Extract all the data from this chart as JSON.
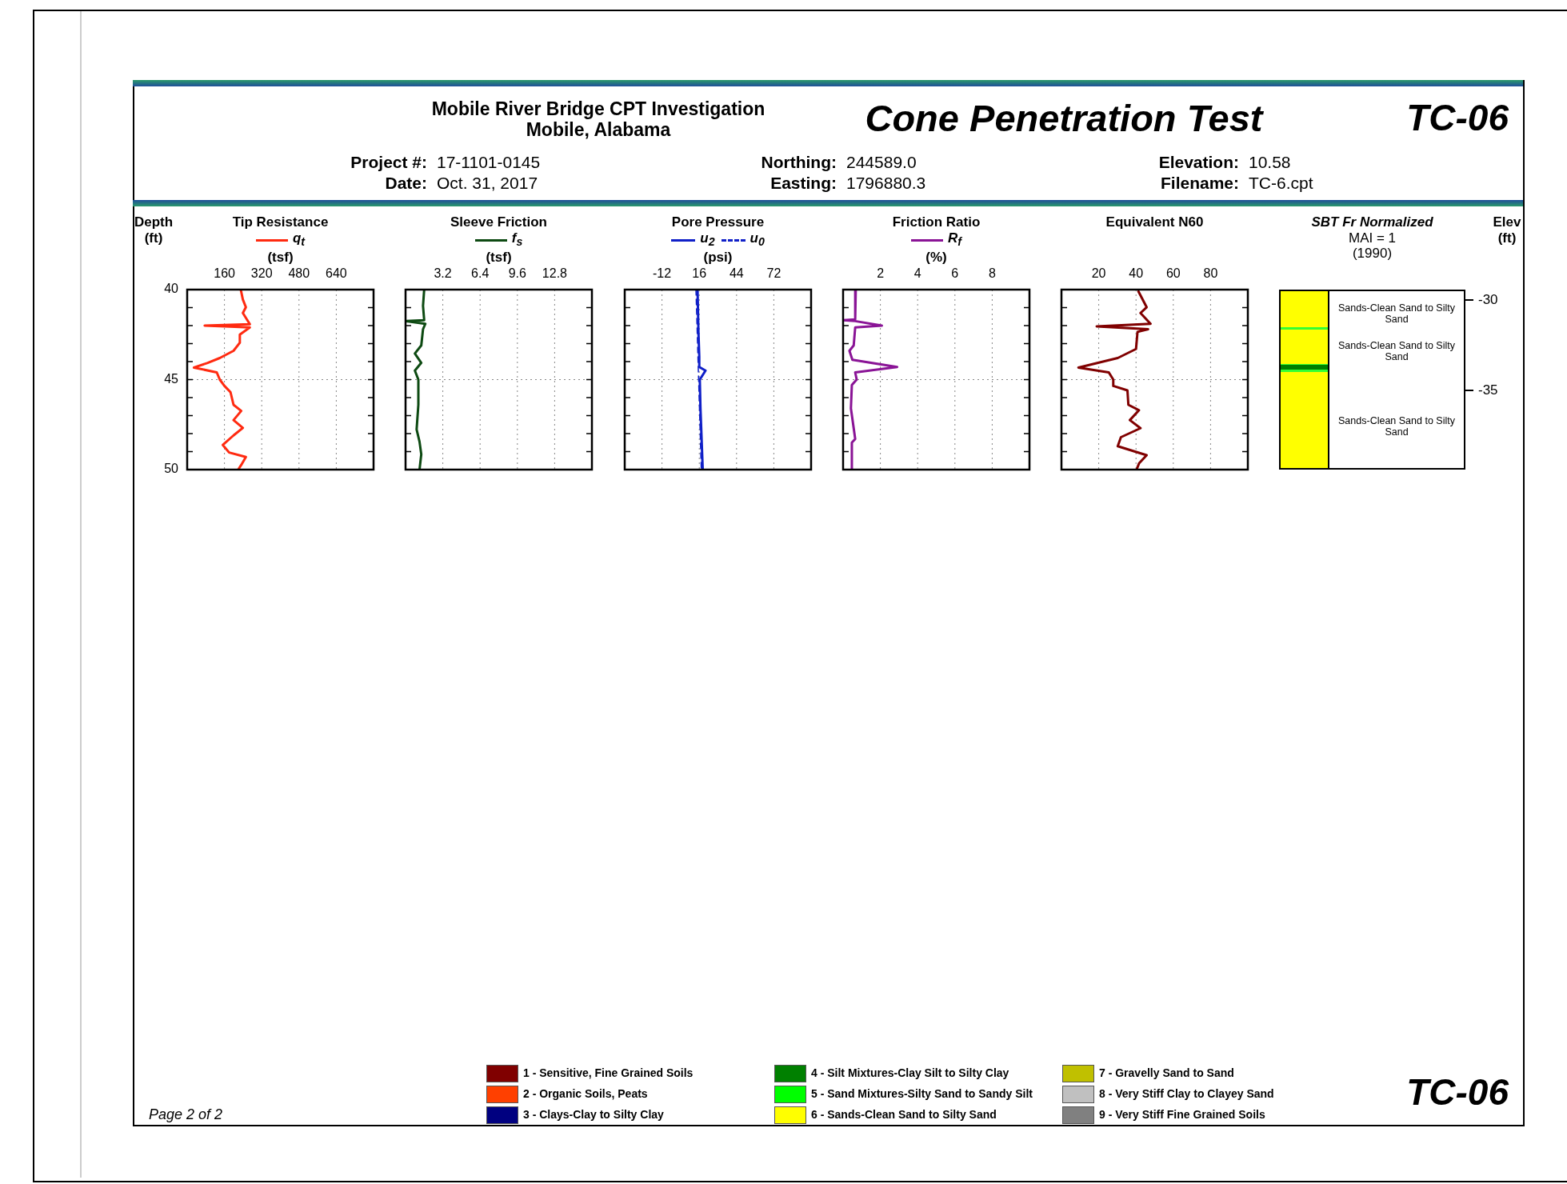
{
  "chart_data": [
    {
      "type": "other",
      "title": "Cone Penetration Test",
      "subtitle": "Mobile River Bridge CPT Investigation\nMobile, Alabama",
      "annotations": [
        "TC-06",
        "Project #: 17-1101-0145",
        "Date: Oct. 31, 2017",
        "Northing: 244589.0",
        "Easting: 1796880.3",
        "Elevation: 10.58",
        "Filename: TC-6.cpt"
      ]
    },
    {
      "type": "line",
      "title": "Tip Resistance",
      "xlabel": "(tsf)",
      "ylabel": "Depth (ft)",
      "legend": "top",
      "grid": true,
      "marker": "none",
      "xlim": [
        0,
        800
      ],
      "xticks": [
        160,
        320,
        480,
        640
      ],
      "ylim": [
        50,
        40
      ],
      "yticks": [
        40,
        {
          "value": 41,
          "label": null
        },
        {
          "value": 42,
          "label": null
        },
        {
          "value": 43,
          "label": null
        },
        {
          "value": 44,
          "label": null
        },
        45,
        {
          "value": 46,
          "label": null
        },
        {
          "value": 47,
          "label": null
        },
        {
          "value": 48,
          "label": null
        },
        {
          "value": 49,
          "label": null
        },
        50
      ],
      "series": [
        {
          "name": "q$_{t}$",
          "color": "#ff2a10",
          "x": [
            230,
            239,
            252,
            239,
            269,
            75,
            269,
            226,
            226,
            199,
            140,
            88,
            29,
            127,
            140,
            160,
            186,
            199,
            232,
            199,
            239,
            199,
            153,
            180,
            252,
            232,
            219
          ],
          "values": [
            40,
            40.55,
            40.98,
            41.3,
            41.92,
            42.0,
            42.1,
            42.5,
            42.95,
            43.4,
            43.8,
            44.07,
            44.33,
            44.6,
            45.0,
            45.35,
            45.7,
            46.4,
            46.74,
            47.25,
            47.68,
            48.1,
            48.63,
            49.05,
            49.3,
            49.74,
            50
          ]
        }
      ]
    },
    {
      "type": "line",
      "title": "Sleeve Friction",
      "xlabel": "(tsf)",
      "legend": "top",
      "grid": true,
      "marker": "none",
      "tick_labels": "x",
      "xlim": [
        0,
        16
      ],
      "xticks": [
        3.2,
        6.4,
        9.6,
        12.8
      ],
      "ylim": [
        50,
        40
      ],
      "yticks": [
        40,
        {
          "value": 41,
          "label": null
        },
        {
          "value": 42,
          "label": null
        },
        {
          "value": 43,
          "label": null
        },
        {
          "value": 44,
          "label": null
        },
        45,
        {
          "value": 46,
          "label": null
        },
        {
          "value": 47,
          "label": null
        },
        {
          "value": 48,
          "label": null
        },
        {
          "value": 49,
          "label": null
        },
        50
      ],
      "series": [
        {
          "name": "f$_{s}$",
          "color": "#0d4a12",
          "x": [
            1.6,
            1.5,
            1.6,
            0.0,
            1.7,
            1.5,
            1.35,
            0.8,
            1.35,
            0.8,
            1.1,
            1.1,
            0.95,
            1.2,
            1.35,
            1.2
          ],
          "values": [
            40,
            40.9,
            41.7,
            41.75,
            41.9,
            42.2,
            43.1,
            43.55,
            44.07,
            44.5,
            45.0,
            46.4,
            47.77,
            48.45,
            49.15,
            50
          ]
        }
      ]
    },
    {
      "type": "line",
      "title": "Pore Pressure",
      "xlabel": "(psi)",
      "legend": "top",
      "grid": true,
      "marker": "none",
      "tick_labels": "x",
      "xlim": [
        -40,
        100
      ],
      "xticks": [
        -12,
        16,
        44,
        72
      ],
      "ylim": [
        50,
        40
      ],
      "yticks": [
        40,
        {
          "value": 41,
          "label": null
        },
        {
          "value": 42,
          "label": null
        },
        {
          "value": 43,
          "label": null
        },
        {
          "value": 44,
          "label": null
        },
        45,
        {
          "value": 46,
          "label": null
        },
        {
          "value": 47,
          "label": null
        },
        {
          "value": 48,
          "label": null
        },
        {
          "value": 49,
          "label": null
        },
        50
      ],
      "series": [
        {
          "name": "u$_{2}$",
          "color": "#1020c8",
          "x": [
            14.7,
            15.4,
            16,
            16,
            20.7,
            16.4,
            16.9,
            18.6
          ],
          "values": [
            40,
            42.4,
            43.7,
            44.3,
            44.5,
            45,
            46.6,
            50
          ]
        },
        {
          "name": "u$_{0}$",
          "color": "#1020c8",
          "line_style": "dashed",
          "x": [
            13.5,
            17.5
          ],
          "values": [
            40,
            50
          ]
        }
      ]
    },
    {
      "type": "line",
      "title": "Friction Ratio",
      "xlabel": "(%)",
      "legend": "top",
      "grid": true,
      "marker": "none",
      "tick_labels": "x",
      "xlim": [
        0,
        10
      ],
      "xticks": [
        2,
        4,
        6,
        8
      ],
      "ylim": [
        50,
        40
      ],
      "yticks": [
        40,
        {
          "value": 41,
          "label": null
        },
        {
          "value": 42,
          "label": null
        },
        {
          "value": 43,
          "label": null
        },
        {
          "value": 44,
          "label": null
        },
        45,
        {
          "value": 46,
          "label": null
        },
        {
          "value": 47,
          "label": null
        },
        {
          "value": 48,
          "label": null
        },
        {
          "value": 49,
          "label": null
        },
        50
      ],
      "series": [
        {
          "name": "R$_{f}$",
          "color": "#8a1496",
          "x": [
            0.68,
            0.65,
            0,
            0.65,
            2.08,
            0.65,
            0.57,
            0.34,
            0.5,
            2.9,
            0.65,
            0.73,
            0.47,
            0.42,
            0.65,
            0.47,
            0.47
          ],
          "values": [
            40,
            41.65,
            41.7,
            41.75,
            42.0,
            42.1,
            43.1,
            43.4,
            43.9,
            44.3,
            44.6,
            45,
            45.3,
            46.6,
            48.3,
            48.5,
            50
          ]
        }
      ]
    },
    {
      "type": "line",
      "title": "Equivalent N60",
      "grid": true,
      "marker": "none",
      "tick_labels": "x",
      "xlim": [
        0,
        100
      ],
      "xticks": [
        20,
        40,
        60,
        80
      ],
      "ylim": [
        50,
        40
      ],
      "yticks": [
        40,
        {
          "value": 41,
          "label": null
        },
        {
          "value": 42,
          "label": null
        },
        {
          "value": 43,
          "label": null
        },
        {
          "value": 44,
          "label": null
        },
        45,
        {
          "value": 46,
          "label": null
        },
        {
          "value": 47,
          "label": null
        },
        {
          "value": 48,
          "label": null
        },
        {
          "value": 49,
          "label": null
        },
        50
      ],
      "series": [
        {
          "color": "#800000",
          "x": [
            41.3,
            45.7,
            42.4,
            47.8,
            18.9,
            46.5,
            40.8,
            40,
            30.2,
            9.1,
            25.4,
            27.8,
            27.8,
            35.4,
            35.9,
            41.6,
            36.7,
            42.4,
            31.9,
            30.2,
            45.7,
            41.6,
            40.3
          ],
          "values": [
            40.1,
            40.98,
            41.3,
            41.9,
            42.04,
            42.2,
            42.35,
            43.3,
            43.8,
            44.33,
            44.6,
            45,
            45.35,
            45.6,
            46.4,
            46.7,
            47.25,
            47.7,
            48.2,
            48.7,
            49.2,
            49.66,
            50
          ]
        }
      ]
    },
    {
      "type": "other",
      "title": "SBT Fr Normalized",
      "subtitle": "MAI = 1\n(1990)",
      "ylabel": "Elev (ft)",
      "annotations": [
        "Sands-Clean Sand to Silty Sand",
        "Sands-Clean Sand to Silty Sand",
        "Sands-Clean Sand to Silty Sand",
        "-30",
        "-35"
      ]
    },
    {
      "type": "other",
      "annotations": [
        "Page 2 of 2",
        "TC-06"
      ],
      "categories": [
        "1 - Sensitive, Fine Grained Soils",
        "2 - Organic Soils, Peats",
        "3 - Clays-Clay to Silty Clay",
        "4 - Silt Mixtures-Clay Silt to Silty Clay",
        "5 - Sand Mixtures-Silty Sand to Sandy Silt",
        "6 - Sands-Clean Sand to Silty Sand",
        "7 - Gravelly Sand to Sand",
        "8 - Very Stiff Clay to Clayey Sand",
        "9 - Very Stiff Fine Grained Soils"
      ],
      "colors": [
        "#800000",
        "#ff4000",
        "#000080",
        "#008000",
        "#00ff00",
        "#ffff00",
        "#c0c000",
        "#c0c0c0",
        "#808080"
      ]
    }
  ]
}
